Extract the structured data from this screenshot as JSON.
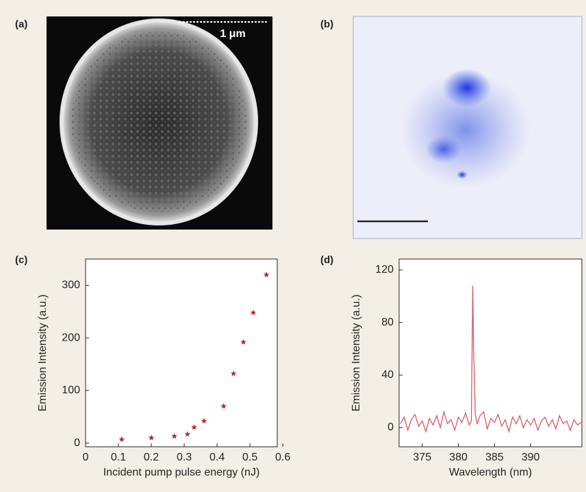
{
  "panels": [
    {
      "label": "(a)",
      "scale_bar": "1 μm"
    },
    {
      "label": "(b)"
    },
    {
      "label": "(c)"
    },
    {
      "label": "(d)"
    }
  ],
  "chart_data": [
    {
      "type": "scatter",
      "x_label": "Incident pump pulse energy (nJ)",
      "y_label": "Emission Intensity (a.u.)",
      "x": [
        0.11,
        0.2,
        0.27,
        0.31,
        0.33,
        0.36,
        0.42,
        0.45,
        0.48,
        0.51,
        0.55
      ],
      "values": [
        7,
        10,
        13,
        17,
        30,
        42,
        70,
        132,
        192,
        248,
        320
      ],
      "color": "#c0272d",
      "xlim": [
        0,
        0.583
      ],
      "xticks": [
        0,
        0.1,
        0.2,
        0.3,
        0.4,
        0.5,
        0.6
      ],
      "ylim": [
        -7,
        350
      ],
      "yticks": [
        0,
        100,
        200,
        300
      ]
    },
    {
      "type": "line",
      "x_label": "Wavelength (nm)",
      "y_label": "Emission Intensity (a.u.)",
      "x": [
        372,
        372.5,
        373,
        373.5,
        374,
        374.5,
        375,
        375.5,
        376,
        376.5,
        377,
        377.5,
        378,
        378.5,
        379,
        379.5,
        380,
        380.5,
        381,
        381.5,
        381.8,
        382.0,
        382.1,
        382.2,
        382.35,
        382.6,
        383,
        383.5,
        384,
        384.5,
        385,
        385.5,
        386,
        386.5,
        387,
        387.5,
        388,
        388.5,
        389,
        389.5,
        390,
        390.5,
        391,
        391.5,
        392,
        392.5,
        393,
        393.5,
        394,
        394.5,
        395,
        395.5,
        396,
        396.5,
        397
      ],
      "values": [
        3,
        8,
        -2,
        6,
        10,
        1,
        5,
        -3,
        7,
        2,
        9,
        0,
        12,
        3,
        6,
        -2,
        8,
        4,
        11,
        2,
        5,
        108,
        60,
        42,
        10,
        3,
        9,
        12,
        -1,
        7,
        4,
        10,
        1,
        6,
        -3,
        8,
        3,
        9,
        0,
        6,
        2,
        7,
        -2,
        5,
        8,
        1,
        6,
        -1,
        9,
        3,
        5,
        -2,
        6,
        2,
        4
      ],
      "color": "#cf5a63",
      "xlim": [
        371.8,
        397.1
      ],
      "xticks": [
        375,
        380,
        385,
        390
      ],
      "ylim": [
        -14.6,
        128.3
      ],
      "yticks": [
        0,
        40,
        80,
        120
      ]
    }
  ]
}
